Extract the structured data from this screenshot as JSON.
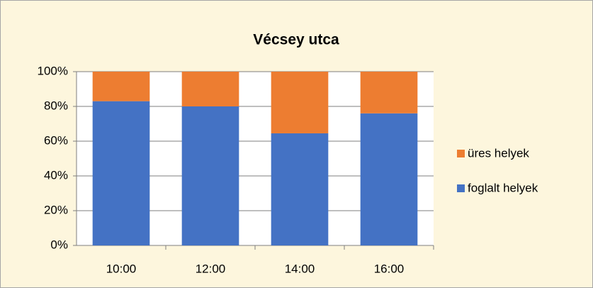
{
  "chart_data": {
    "type": "stacked_bar",
    "title": "Vécsey utca",
    "categories": [
      "10:00",
      "12:00",
      "14:00",
      "16:00"
    ],
    "series": [
      {
        "name": "foglalt helyek",
        "color": "#4472c4",
        "values": [
          83,
          80,
          64.5,
          76
        ]
      },
      {
        "name": "üres helyek",
        "color": "#ed7d31",
        "values": [
          17,
          20,
          35.5,
          24
        ]
      }
    ],
    "ylim": [
      0,
      100
    ],
    "yticks": [
      {
        "value": 0,
        "label": "0%"
      },
      {
        "value": 20,
        "label": "20%"
      },
      {
        "value": 40,
        "label": "40%"
      },
      {
        "value": 60,
        "label": "60%"
      },
      {
        "value": 80,
        "label": "80%"
      },
      {
        "value": 100,
        "label": "100%"
      }
    ],
    "grid": true,
    "legend": "right"
  }
}
